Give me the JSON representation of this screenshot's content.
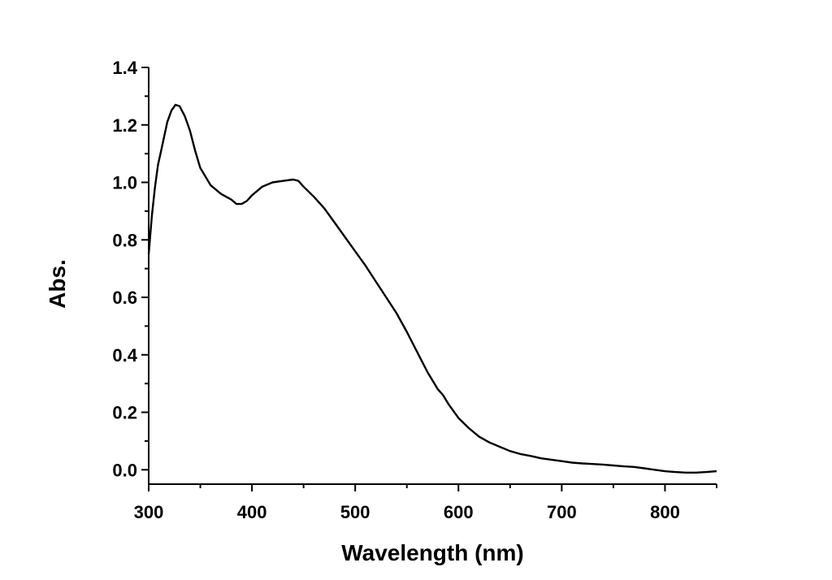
{
  "chart_data": {
    "type": "line",
    "title": "",
    "xlabel": "Wavelength (nm)",
    "ylabel": "Abs.",
    "xlim": [
      300,
      850
    ],
    "ylim": [
      -0.05,
      1.4
    ],
    "x_ticks": [
      300,
      400,
      500,
      600,
      700,
      800
    ],
    "x_tick_labels": [
      "300",
      "400",
      "500",
      "600",
      "700",
      "800"
    ],
    "y_ticks": [
      0.0,
      0.2,
      0.4,
      0.6,
      0.8,
      1.0,
      1.2,
      1.4
    ],
    "y_tick_labels": [
      "0.0",
      "0.2",
      "0.4",
      "0.6",
      "0.8",
      "1.0",
      "1.2",
      "1.4"
    ],
    "grid": false,
    "legend": "none",
    "series": [
      {
        "color": "#000000",
        "x": [
          300,
          303,
          306,
          309,
          312,
          315,
          318,
          322,
          326,
          330,
          335,
          340,
          345,
          350,
          360,
          370,
          380,
          385,
          390,
          395,
          400,
          410,
          420,
          430,
          440,
          445,
          450,
          460,
          470,
          480,
          490,
          500,
          510,
          520,
          530,
          540,
          550,
          560,
          570,
          580,
          585,
          590,
          600,
          610,
          620,
          630,
          640,
          650,
          660,
          670,
          680,
          690,
          700,
          710,
          720,
          730,
          740,
          750,
          760,
          770,
          780,
          790,
          800,
          810,
          820,
          830,
          840,
          850
        ],
        "y": [
          0.75,
          0.88,
          0.98,
          1.06,
          1.11,
          1.16,
          1.21,
          1.25,
          1.27,
          1.265,
          1.23,
          1.18,
          1.11,
          1.05,
          0.99,
          0.96,
          0.94,
          0.925,
          0.925,
          0.935,
          0.955,
          0.985,
          1.0,
          1.005,
          1.01,
          1.005,
          0.985,
          0.95,
          0.91,
          0.86,
          0.81,
          0.76,
          0.71,
          0.655,
          0.6,
          0.545,
          0.48,
          0.41,
          0.34,
          0.28,
          0.26,
          0.23,
          0.18,
          0.145,
          0.115,
          0.095,
          0.08,
          0.065,
          0.055,
          0.048,
          0.04,
          0.035,
          0.03,
          0.025,
          0.022,
          0.02,
          0.018,
          0.015,
          0.012,
          0.01,
          0.005,
          0.0,
          -0.005,
          -0.008,
          -0.01,
          -0.01,
          -0.008,
          -0.005
        ]
      }
    ]
  }
}
